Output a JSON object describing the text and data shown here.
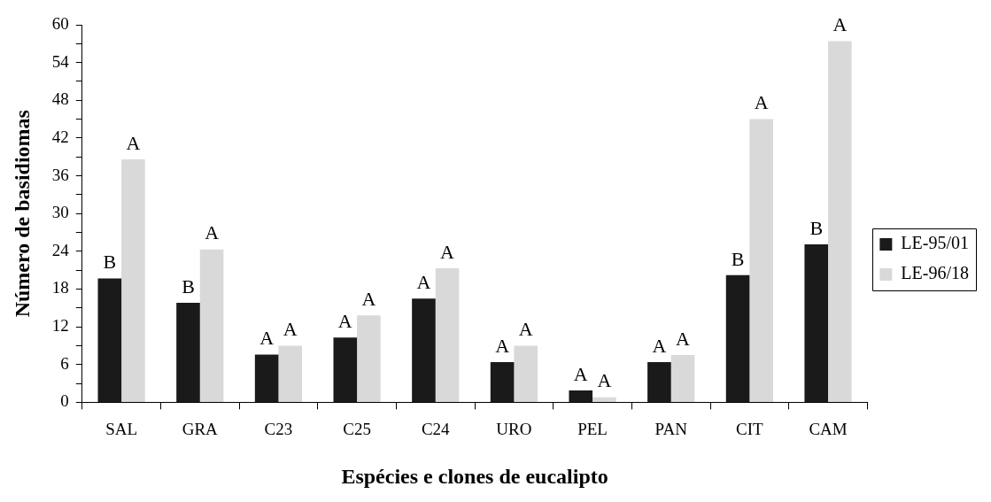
{
  "chart_data": {
    "type": "bar",
    "xlabel": "Espécies e clones de eucalipto",
    "ylabel": "Número de basidiomas",
    "categories": [
      "SAL",
      "GRA",
      "C23",
      "C25",
      "C24",
      "URO",
      "PEL",
      "PAN",
      "CIT",
      "CAM"
    ],
    "series": [
      {
        "name": "LE-95/01",
        "color": "#1a1a1a",
        "values": [
          19.7,
          15.8,
          7.6,
          10.3,
          16.5,
          6.4,
          1.9,
          6.4,
          20.2,
          25.1
        ]
      },
      {
        "name": "LE-96/18",
        "color": "#d9d9d9",
        "values": [
          38.6,
          24.3,
          9.0,
          13.8,
          21.3,
          9.0,
          0.8,
          7.5,
          45.0,
          57.4
        ]
      }
    ],
    "ylim": [
      0,
      60
    ],
    "yticks": [
      0,
      {
        "value": 3,
        "label": null
      },
      6,
      {
        "value": 9,
        "label": null
      },
      12,
      {
        "value": 15,
        "label": null
      },
      18,
      {
        "value": 21,
        "label": null
      },
      24,
      {
        "value": 27,
        "label": null
      },
      30,
      {
        "value": 33,
        "label": null
      },
      36,
      {
        "value": 39,
        "label": null
      },
      42,
      {
        "value": 45,
        "label": null
      },
      48,
      {
        "value": 51,
        "label": null
      },
      54,
      {
        "value": 57,
        "label": null
      },
      60
    ],
    "grid": false,
    "legend": "right",
    "annotations": [
      {
        "text": "B",
        "x": "SAL",
        "y": 19.7
      },
      {
        "text": "A",
        "x": "SAL",
        "y": 38.6
      },
      {
        "text": "B",
        "x": "GRA",
        "y": 15.8
      },
      {
        "text": "A",
        "x": "GRA",
        "y": 24.3
      },
      {
        "text": "A",
        "x": "C23",
        "y": 7.6
      },
      {
        "text": "A",
        "x": "C23",
        "y": 9.0
      },
      {
        "text": "A",
        "x": "C25",
        "y": 10.3
      },
      {
        "text": "A",
        "x": "C25",
        "y": 13.8
      },
      {
        "text": "A",
        "x": "C24",
        "y": 16.5
      },
      {
        "text": "A",
        "x": "C24",
        "y": 21.3
      },
      {
        "text": "A",
        "x": "URO",
        "y": 6.4
      },
      {
        "text": "A",
        "x": "URO",
        "y": 9.0
      },
      {
        "text": "A",
        "x": "PEL",
        "y": 1.9
      },
      {
        "text": "A",
        "x": "PEL",
        "y": 0.8
      },
      {
        "text": "A",
        "x": "PAN",
        "y": 6.4
      },
      {
        "text": "A",
        "x": "PAN",
        "y": 7.5
      },
      {
        "text": "B",
        "x": "CIT",
        "y": 20.2
      },
      {
        "text": "A",
        "x": "CIT",
        "y": 45.0
      },
      {
        "text": "B",
        "x": "CAM",
        "y": 25.1
      },
      {
        "text": "A",
        "x": "CAM",
        "y": 57.4
      }
    ]
  }
}
